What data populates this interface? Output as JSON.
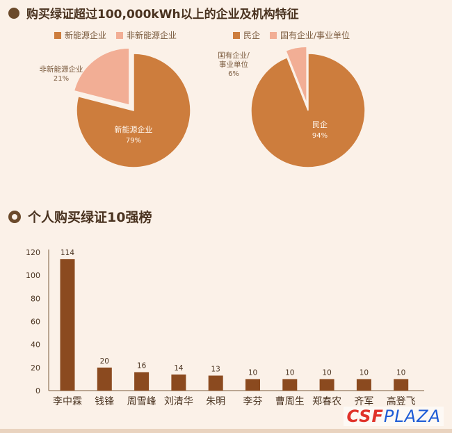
{
  "colors": {
    "primary": "#cd7d3d",
    "secondary": "#f2ae95",
    "bar": "#8b4a1f",
    "text_dark": "#4a3320",
    "text_mid": "#7a5a3d"
  },
  "section1": {
    "title": "购买绿证超过100,000kWh以上的企业及机构特征"
  },
  "chart_data": [
    {
      "type": "pie",
      "legend": [
        "新能源企业",
        "非新能源企业"
      ],
      "slices": [
        {
          "name": "新能源企业",
          "value": 79,
          "label": "新能源企业",
          "pct": "79%"
        },
        {
          "name": "非新能源企业",
          "value": 21,
          "label": "非新能源企业",
          "pct": "21%"
        }
      ],
      "exploded": "非新能源企业",
      "legend_position": "top"
    },
    {
      "type": "pie",
      "legend": [
        "民企",
        "国有企业/事业单位"
      ],
      "slices": [
        {
          "name": "民企",
          "value": 94,
          "label": "民企",
          "pct": "94%"
        },
        {
          "name": "国有企业/事业单位",
          "value": 6,
          "label": "国有企业/事业单位",
          "label_lines": [
            "国有企业/",
            "事业单位"
          ],
          "pct": "6%"
        }
      ],
      "exploded": "国有企业/事业单位",
      "legend_position": "top"
    },
    {
      "type": "bar",
      "title": "个人购买绿证10强榜",
      "categories": [
        "李中霖",
        "钱锋",
        "周雪峰",
        "刘清华",
        "朱明",
        "李芬",
        "曹周生",
        "郑春农",
        "齐军",
        "高登飞"
      ],
      "values": [
        114,
        20,
        16,
        14,
        13,
        10,
        10,
        10,
        10,
        10
      ],
      "ylim": [
        0,
        120
      ],
      "yticks": [
        0,
        20,
        40,
        60,
        80,
        100,
        120
      ],
      "xlabel": "",
      "ylabel": "",
      "grid": false
    }
  ],
  "section2": {
    "title": "个人购买绿证10强榜"
  },
  "watermark": {
    "part1": "CSF",
    "part2": "PLAZA"
  }
}
